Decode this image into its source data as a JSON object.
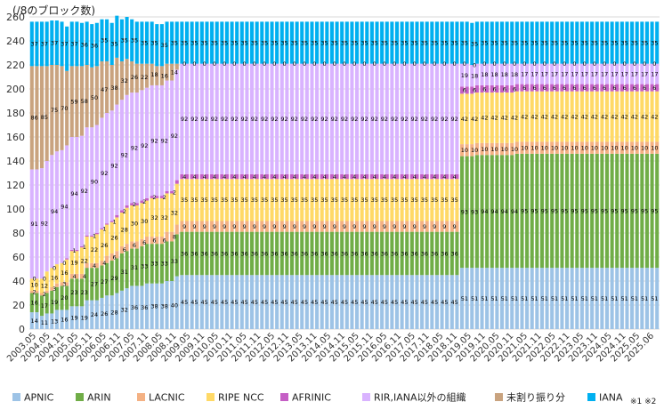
{
  "chart_data": {
    "type": "bar",
    "stacked": true,
    "unit_label": "(/8のブロック数)",
    "note": "※1 ※2",
    "ylim": [
      0,
      260
    ],
    "yticks": [
      0,
      20,
      40,
      60,
      80,
      100,
      120,
      140,
      160,
      180,
      200,
      220,
      240,
      260
    ],
    "grid": true,
    "legend_position": "bottom",
    "x_tick_labels": [
      "2003.05",
      "2004.05",
      "2004.11",
      "2005.05",
      "2005.11",
      "2006.05",
      "2006.11",
      "2007.05",
      "2007.11",
      "2008.05",
      "2008.11",
      "2009.05",
      "2009.11",
      "2010.05",
      "2010.11",
      "2011.05",
      "2011.11",
      "2012.05",
      "2012.11",
      "2013.05",
      "2013.11",
      "2014.05",
      "2014.11",
      "2015.05",
      "2015.11",
      "2016.05",
      "2016.11",
      "2017.05",
      "2017.11",
      "2018.05",
      "2018.11",
      "2019.05",
      "2019.11",
      "2020.05",
      "2020.11",
      "2021.05",
      "2021.11",
      "2022.05",
      "2022.11",
      "2023.05",
      "2023.11",
      "2024.05",
      "2024.11",
      "2025.05",
      "2025.06"
    ],
    "series": [
      {
        "name": "APNIC",
        "color": "#9dc3e6",
        "values": [
          14,
          14,
          11,
          13,
          13,
          16,
          16,
          16,
          19,
          19,
          19,
          24,
          24,
          24,
          26,
          28,
          28,
          30,
          32,
          34,
          36,
          36,
          36,
          38,
          38,
          38,
          38,
          40,
          40,
          44,
          45,
          45,
          45,
          45,
          45,
          45,
          45,
          45,
          45,
          45,
          45,
          45,
          45,
          45,
          45,
          45,
          45,
          45,
          45,
          45,
          45,
          45,
          45,
          45,
          45,
          45,
          45,
          45,
          45,
          45,
          45,
          45,
          45,
          45,
          45,
          45,
          45,
          45,
          45,
          45,
          45,
          45,
          45,
          45,
          45,
          45,
          45,
          45,
          45,
          45,
          45,
          45,
          45,
          45,
          45,
          45,
          51,
          51,
          51,
          51,
          51,
          51,
          51,
          51,
          51,
          51,
          51,
          51,
          51,
          51,
          51,
          51,
          51,
          51,
          51,
          51,
          51,
          51,
          51,
          51,
          51,
          51,
          51,
          51,
          51,
          51,
          51,
          51,
          51,
          51,
          51,
          51,
          51,
          51,
          51,
          51
        ]
      },
      {
        "name": "ARIN",
        "color": "#70ad47",
        "values": [
          16,
          16,
          17,
          17,
          19,
          19,
          20,
          20,
          23,
          23,
          23,
          27,
          27,
          27,
          27,
          27,
          29,
          29,
          31,
          31,
          31,
          31,
          33,
          33,
          33,
          33,
          33,
          33,
          33,
          35,
          36,
          36,
          36,
          36,
          36,
          36,
          36,
          36,
          36,
          36,
          36,
          36,
          36,
          36,
          36,
          36,
          36,
          36,
          36,
          36,
          36,
          36,
          36,
          36,
          36,
          36,
          36,
          36,
          36,
          36,
          36,
          36,
          36,
          36,
          36,
          36,
          36,
          36,
          36,
          36,
          36,
          36,
          36,
          36,
          36,
          36,
          36,
          36,
          36,
          36,
          36,
          36,
          36,
          36,
          36,
          36,
          93,
          93,
          93,
          94,
          94,
          94,
          94,
          94,
          94,
          94,
          94,
          95,
          95,
          95,
          95,
          95,
          95,
          95,
          95,
          95,
          95,
          95,
          95,
          95,
          95,
          95,
          95,
          95,
          95,
          95,
          95,
          95,
          95,
          95,
          95,
          95,
          95,
          95,
          95,
          95
        ]
      },
      {
        "name": "LACNIC",
        "color": "#f4b183",
        "values": [
          2,
          2,
          2,
          2,
          3,
          3,
          3,
          3,
          4,
          4,
          4,
          4,
          4,
          4,
          4,
          6,
          6,
          6,
          6,
          6,
          6,
          6,
          6,
          6,
          6,
          6,
          6,
          8,
          8,
          8,
          9,
          9,
          9,
          9,
          9,
          9,
          9,
          9,
          9,
          9,
          9,
          9,
          9,
          9,
          9,
          9,
          9,
          9,
          9,
          9,
          9,
          9,
          9,
          9,
          9,
          9,
          9,
          9,
          9,
          9,
          9,
          9,
          9,
          9,
          9,
          9,
          9,
          9,
          9,
          9,
          9,
          9,
          9,
          9,
          9,
          9,
          9,
          9,
          9,
          9,
          9,
          9,
          9,
          9,
          9,
          9,
          10,
          10,
          10,
          10,
          10,
          10,
          10,
          10,
          10,
          10,
          10,
          10,
          10,
          10,
          10,
          10,
          10,
          10,
          10,
          10,
          10,
          10,
          10,
          10,
          10,
          10,
          10,
          10,
          10,
          10,
          10,
          10,
          10,
          10,
          10,
          10,
          10,
          10,
          10,
          10
        ]
      },
      {
        "name": "RIPE NCC",
        "color": "#ffd966",
        "values": [
          10,
          10,
          12,
          16,
          16,
          16,
          16,
          19,
          19,
          19,
          22,
          22,
          22,
          24,
          26,
          26,
          26,
          28,
          28,
          30,
          30,
          30,
          30,
          30,
          32,
          32,
          32,
          32,
          32,
          34,
          35,
          35,
          35,
          35,
          35,
          35,
          35,
          35,
          35,
          35,
          35,
          35,
          35,
          35,
          35,
          35,
          35,
          35,
          35,
          35,
          35,
          35,
          35,
          35,
          35,
          35,
          35,
          35,
          35,
          35,
          35,
          35,
          35,
          35,
          35,
          35,
          35,
          35,
          35,
          35,
          35,
          35,
          35,
          35,
          35,
          35,
          35,
          35,
          35,
          35,
          35,
          35,
          35,
          35,
          35,
          35,
          42,
          42,
          42,
          42,
          42,
          42,
          42,
          42,
          42,
          42,
          42,
          42,
          42,
          42,
          42,
          42,
          42,
          42,
          42,
          42,
          42,
          42,
          42,
          42,
          42,
          42,
          42,
          42,
          42,
          42,
          42,
          42,
          42,
          42,
          42,
          42,
          42,
          42,
          42,
          42
        ]
      },
      {
        "name": "AFRINIC",
        "color": "#c55fc5",
        "values": [
          0,
          0,
          0,
          0,
          0,
          0,
          0,
          1,
          1,
          1,
          1,
          1,
          1,
          1,
          1,
          1,
          1,
          2,
          2,
          2,
          2,
          2,
          2,
          2,
          2,
          2,
          2,
          2,
          2,
          3,
          4,
          4,
          4,
          4,
          4,
          4,
          4,
          4,
          4,
          4,
          4,
          4,
          4,
          4,
          4,
          4,
          4,
          4,
          4,
          4,
          4,
          4,
          4,
          4,
          4,
          4,
          4,
          4,
          4,
          4,
          4,
          4,
          4,
          4,
          4,
          4,
          4,
          4,
          4,
          4,
          4,
          4,
          4,
          4,
          4,
          4,
          4,
          4,
          4,
          4,
          4,
          4,
          4,
          4,
          4,
          4,
          6,
          6,
          6,
          6,
          6,
          6,
          6,
          6,
          6,
          6,
          6,
          6,
          6,
          6,
          6,
          6,
          6,
          6,
          6,
          6,
          6,
          6,
          6,
          6,
          6,
          6,
          6,
          6,
          6,
          6,
          6,
          6,
          6,
          6,
          6,
          6,
          6,
          6,
          6,
          6
        ]
      },
      {
        "name": "RIR,IANA以外の組織",
        "color": "#d9b3ff",
        "values": [
          91,
          91,
          92,
          92,
          94,
          94,
          94,
          94,
          94,
          94,
          92,
          90,
          90,
          90,
          92,
          92,
          92,
          92,
          92,
          92,
          92,
          92,
          92,
          92,
          92,
          92,
          92,
          92,
          92,
          92,
          92,
          92,
          92,
          92,
          92,
          92,
          92,
          92,
          92,
          92,
          92,
          92,
          92,
          92,
          92,
          92,
          92,
          92,
          92,
          92,
          92,
          92,
          92,
          92,
          92,
          92,
          92,
          92,
          92,
          92,
          92,
          92,
          92,
          92,
          92,
          92,
          92,
          92,
          92,
          92,
          92,
          92,
          92,
          92,
          92,
          92,
          92,
          92,
          92,
          92,
          92,
          92,
          92,
          92,
          92,
          92,
          19,
          19,
          18,
          18,
          18,
          18,
          18,
          18,
          18,
          18,
          18,
          17,
          17,
          17,
          17,
          17,
          17,
          17,
          17,
          17,
          17,
          17,
          17,
          17,
          17,
          17,
          17,
          17,
          17,
          17,
          17,
          17,
          17,
          17,
          17,
          17,
          17,
          17,
          17,
          17
        ]
      },
      {
        "name": "未割り振り分",
        "color": "#c9a37f",
        "values": [
          86,
          86,
          85,
          79,
          75,
          72,
          70,
          62,
          59,
          59,
          58,
          52,
          50,
          49,
          47,
          43,
          38,
          39,
          32,
          30,
          26,
          24,
          22,
          20,
          18,
          16,
          16,
          14,
          14,
          5,
          0,
          0,
          0,
          0,
          0,
          0,
          0,
          0,
          0,
          0,
          0,
          0,
          0,
          0,
          0,
          0,
          0,
          0,
          0,
          0,
          0,
          0,
          0,
          0,
          0,
          0,
          0,
          0,
          0,
          0,
          0,
          0,
          0,
          0,
          0,
          0,
          0,
          0,
          0,
          0,
          0,
          0,
          0,
          0,
          0,
          0,
          0,
          0,
          0,
          0,
          0,
          0,
          0,
          0,
          0,
          0,
          0,
          0,
          0,
          0,
          0,
          0,
          0,
          0,
          0,
          0,
          0,
          0,
          0,
          0,
          0,
          0,
          0,
          0,
          0,
          0,
          0,
          0,
          0,
          0,
          0,
          0,
          0,
          0,
          0,
          0,
          0,
          0,
          0,
          0,
          0,
          0,
          0,
          0,
          0,
          0
        ]
      },
      {
        "name": "IANA",
        "color": "#00b0f0",
        "values": [
          37,
          37,
          37,
          37,
          37,
          37,
          37,
          37,
          37,
          37,
          36,
          36,
          36,
          36,
          35,
          35,
          35,
          35,
          35,
          35,
          35,
          35,
          35,
          35,
          35,
          35,
          35,
          35,
          35,
          35,
          35,
          35,
          35,
          35,
          35,
          35,
          35,
          35,
          35,
          35,
          35,
          35,
          35,
          35,
          35,
          35,
          35,
          35,
          35,
          35,
          35,
          35,
          35,
          35,
          35,
          35,
          35,
          35,
          35,
          35,
          35,
          35,
          35,
          35,
          35,
          35,
          35,
          35,
          35,
          35,
          35,
          35,
          35,
          35,
          35,
          35,
          35,
          35,
          35,
          35,
          35,
          35,
          35,
          35,
          35,
          35,
          35,
          35,
          35,
          35,
          35,
          35,
          35,
          35,
          35,
          35,
          35,
          35,
          35,
          35,
          35,
          35,
          35,
          35,
          35,
          35,
          35,
          35,
          35,
          35,
          35,
          35,
          35,
          35,
          35,
          35,
          35,
          35,
          35,
          35,
          35,
          35,
          35,
          35,
          35,
          35
        ]
      }
    ]
  }
}
